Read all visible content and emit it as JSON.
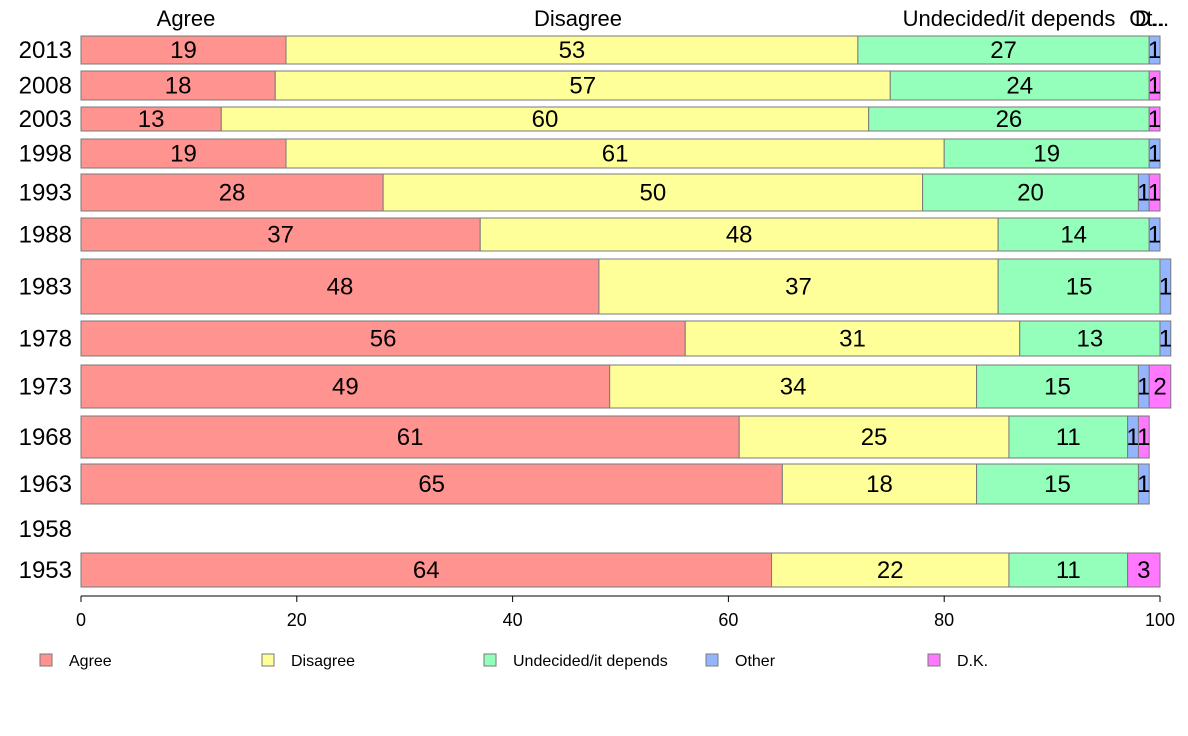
{
  "chart_data": {
    "type": "bar",
    "orientation": "horizontal",
    "stacked": true,
    "categories": [
      "2013",
      "2008",
      "2003",
      "1998",
      "1993",
      "1988",
      "1983",
      "1978",
      "1973",
      "1968",
      "1963",
      "1958",
      "1953"
    ],
    "series": [
      {
        "name": "Agree",
        "color": "#ff9390",
        "values": [
          19,
          18,
          13,
          19,
          28,
          37,
          48,
          56,
          49,
          61,
          65,
          null,
          64
        ]
      },
      {
        "name": "Disagree",
        "color": "#ffff9a",
        "values": [
          53,
          57,
          60,
          61,
          50,
          48,
          37,
          31,
          34,
          25,
          18,
          null,
          22
        ]
      },
      {
        "name": "Undecided/it depends",
        "color": "#93ffba",
        "values": [
          27,
          24,
          26,
          19,
          20,
          14,
          15,
          13,
          15,
          11,
          15,
          null,
          11
        ]
      },
      {
        "name": "Other",
        "color": "#93b5ff",
        "values": [
          1,
          0,
          0,
          1,
          1,
          1,
          1,
          1,
          1,
          1,
          1,
          null,
          0
        ]
      },
      {
        "name": "D.K.",
        "color": "#ff78ff",
        "values": [
          0,
          1,
          1,
          0,
          1,
          0,
          0,
          0,
          2,
          1,
          0,
          null,
          3
        ]
      }
    ],
    "column_headers": [
      "Agree",
      "Disagree",
      "Undecided/it depends",
      "Ot..",
      "D..."
    ],
    "x_ticks": [
      "0",
      "20",
      "40",
      "60",
      "80",
      "100"
    ],
    "xlim": [
      0,
      100
    ],
    "grid": false,
    "legend_position": "bottom"
  }
}
